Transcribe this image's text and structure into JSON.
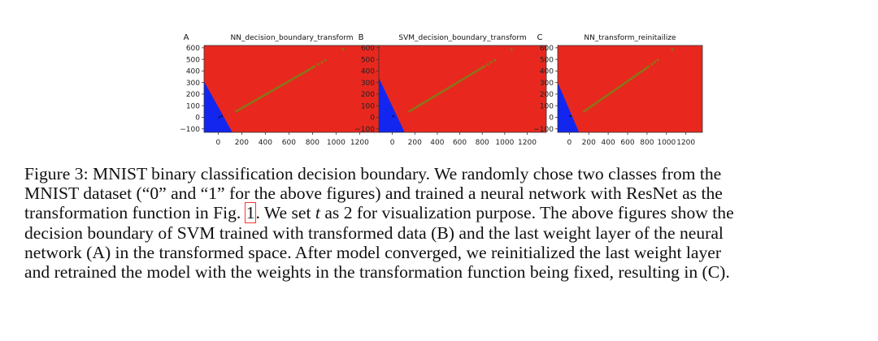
{
  "chart_data": [
    {
      "type": "scatter",
      "panel_letter": "A",
      "title": "NN_decision_boundary_transform",
      "xlabel": "",
      "ylabel": "",
      "xlim": [
        -120,
        1370
      ],
      "ylim": [
        -130,
        620
      ],
      "xticks": [
        0,
        200,
        400,
        600,
        800,
        1000,
        1200
      ],
      "xtick_labels": [
        "0",
        "200",
        "400",
        "600",
        "800",
        "1000",
        "1200"
      ],
      "yticks": [
        -100,
        0,
        100,
        200,
        300,
        400,
        500,
        600
      ],
      "ytick_labels": [
        "−100",
        "0",
        "100",
        "200",
        "300",
        "400",
        "500",
        "600"
      ],
      "grid": false,
      "series": [
        {
          "color": "#e8281e",
          "region": [
            [
              -120,
              -130
            ],
            [
              1370,
              -130
            ],
            [
              1370,
              620
            ],
            [
              -120,
              620
            ]
          ]
        },
        {
          "color": "#1226f0",
          "region": [
            [
              -120,
              310
            ],
            [
              -120,
              -130
            ],
            [
              120,
              -130
            ]
          ]
        },
        {
          "color": "#8a7418",
          "x": [
            150,
            820
          ],
          "y": [
            50,
            440
          ]
        },
        {
          "color": "#8a7418",
          "x": [
            850,
            880,
            910,
            1060
          ],
          "y": [
            458,
            475,
            492,
            585
          ]
        },
        {
          "color": "#111111",
          "x": [
            10,
            30
          ],
          "y": [
            0,
            10
          ]
        }
      ]
    },
    {
      "type": "scatter",
      "panel_letter": "B",
      "title": "SVM_decision_boundary_transform",
      "xlabel": "",
      "ylabel": "",
      "xlim": [
        -120,
        1370
      ],
      "ylim": [
        -130,
        620
      ],
      "xticks": [
        0,
        200,
        400,
        600,
        800,
        1000,
        1200
      ],
      "xtick_labels": [
        "0",
        "200",
        "400",
        "600",
        "800",
        "1000",
        "1200"
      ],
      "yticks": [
        -100,
        0,
        100,
        200,
        300,
        400,
        500,
        600
      ],
      "ytick_labels": [
        "−100",
        "0",
        "100",
        "200",
        "300",
        "400",
        "500",
        "600"
      ],
      "grid": false,
      "series": [
        {
          "color": "#e8281e",
          "region": [
            [
              -120,
              -130
            ],
            [
              1370,
              -130
            ],
            [
              1370,
              620
            ],
            [
              -120,
              620
            ]
          ]
        },
        {
          "color": "#1226f0",
          "region": [
            [
              -120,
              340
            ],
            [
              -120,
              -130
            ],
            [
              110,
              -130
            ]
          ]
        },
        {
          "color": "#8a7418",
          "x": [
            150,
            820
          ],
          "y": [
            50,
            440
          ]
        },
        {
          "color": "#8a7418",
          "x": [
            850,
            880,
            910,
            1060
          ],
          "y": [
            458,
            475,
            492,
            585
          ]
        },
        {
          "color": "#111111",
          "x": [
            10
          ],
          "y": [
            10
          ]
        }
      ]
    },
    {
      "type": "scatter",
      "panel_letter": "C",
      "title": "NN_transform_reinitailize",
      "xlabel": "",
      "ylabel": "",
      "xlim": [
        -120,
        1370
      ],
      "ylim": [
        -130,
        620
      ],
      "xticks": [
        0,
        200,
        400,
        600,
        800,
        1000,
        1200
      ],
      "xtick_labels": [
        "0",
        "200",
        "400",
        "600",
        "800",
        "1000",
        "1200"
      ],
      "yticks": [
        -100,
        0,
        100,
        200,
        300,
        400,
        500,
        600
      ],
      "ytick_labels": [
        "−100",
        "0",
        "100",
        "200",
        "300",
        "400",
        "500",
        "600"
      ],
      "grid": false,
      "series": [
        {
          "color": "#e8281e",
          "region": [
            [
              -120,
              -130
            ],
            [
              1370,
              -130
            ],
            [
              1370,
              620
            ],
            [
              -120,
              620
            ]
          ]
        },
        {
          "color": "#1226f0",
          "region": [
            [
              -120,
              300
            ],
            [
              -120,
              -130
            ],
            [
              100,
              -130
            ]
          ]
        },
        {
          "color": "#8a7418",
          "x": [
            150,
            820
          ],
          "y": [
            50,
            440
          ]
        },
        {
          "color": "#8a7418",
          "x": [
            850,
            880,
            910,
            1060
          ],
          "y": [
            458,
            475,
            492,
            585
          ]
        },
        {
          "color": "#111111",
          "x": [
            10
          ],
          "y": [
            10
          ]
        }
      ]
    }
  ],
  "caption": {
    "line1": "Figure 3: MNIST binary classification decision boundary. We randomly chose two classes from the",
    "line2": "MNIST dataset (“0” and “1” for the above figures) and trained a neural network with ResNet as the",
    "line3_before": "transformation function in Fig. ",
    "line3_ref": "1",
    "line3_mid": ". We set ",
    "line3_var": "t",
    "line3_after": " as 2 for visualization purpose. The above figures show the",
    "line4": "decision boundary of SVM trained with transformed data (B) and the last weight layer of the neural",
    "line5": "network (A) in the transformed space. After model converged, we reinitialized the last weight layer",
    "line6": "and retrained the model with the weights in the transformation function being fixed, resulting in (C)."
  }
}
